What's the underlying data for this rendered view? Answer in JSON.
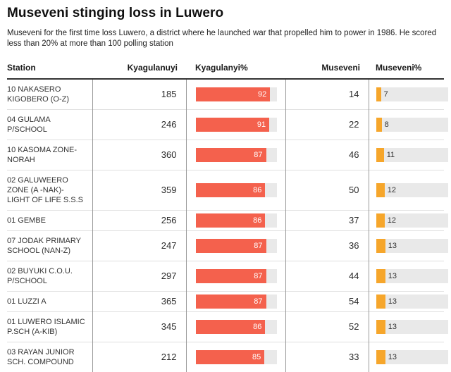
{
  "title": "Museveni stinging loss in Luwero",
  "subtitle": "Museveni for the first time loss Luwero, a district where he launched war that propelled him to power in 1986. He scored less than 20% at more than 100 polling station",
  "colors": {
    "kyagulanyi_bar": "#f4614d",
    "museveni_bar": "#f6a62b",
    "bar_track": "#e9e9e9",
    "header_rule": "#333333",
    "row_rule": "#e0e0e0",
    "column_rule": "#9a9a9a"
  },
  "table": {
    "columns": [
      {
        "key": "station",
        "label": "Station"
      },
      {
        "key": "kyagulanyi_votes",
        "label": "Kyagulanuyi"
      },
      {
        "key": "kyagulanyi_pct",
        "label": "Kyagulanyi%"
      },
      {
        "key": "museveni_votes",
        "label": "Museveni"
      },
      {
        "key": "museveni_pct",
        "label": "Museveni%"
      }
    ],
    "rows": [
      {
        "station": "10 NAKASERO KIGOBERO (O-Z)",
        "kyagulanyi_votes": "185",
        "kyagulanyi_pct": 92,
        "museveni_votes": "14",
        "museveni_pct": 7
      },
      {
        "station": "04 GULAMA P/SCHOOL",
        "kyagulanyi_votes": "246",
        "kyagulanyi_pct": 91,
        "museveni_votes": "22",
        "museveni_pct": 8
      },
      {
        "station": "10 KASOMA ZONE-NORAH",
        "kyagulanyi_votes": "360",
        "kyagulanyi_pct": 87,
        "museveni_votes": "46",
        "museveni_pct": 11
      },
      {
        "station": "02 GALUWEERO ZONE (A -NAK)- LIGHT OF LIFE S.S.S",
        "kyagulanyi_votes": "359",
        "kyagulanyi_pct": 86,
        "museveni_votes": "50",
        "museveni_pct": 12
      },
      {
        "station": "01 GEMBE",
        "kyagulanyi_votes": "256",
        "kyagulanyi_pct": 86,
        "museveni_votes": "37",
        "museveni_pct": 12
      },
      {
        "station": "07 JODAK PRIMARY SCHOOL (NAN-Z)",
        "kyagulanyi_votes": "247",
        "kyagulanyi_pct": 87,
        "museveni_votes": "36",
        "museveni_pct": 13
      },
      {
        "station": "02 BUYUKI C.O.U. P/SCHOOL",
        "kyagulanyi_votes": "297",
        "kyagulanyi_pct": 87,
        "museveni_votes": "44",
        "museveni_pct": 13
      },
      {
        "station": "01 LUZZI A",
        "kyagulanyi_votes": "365",
        "kyagulanyi_pct": 87,
        "museveni_votes": "54",
        "museveni_pct": 13
      },
      {
        "station": "01 LUWERO ISLAMIC P.SCH (A-KIB)",
        "kyagulanyi_votes": "345",
        "kyagulanyi_pct": 86,
        "museveni_votes": "52",
        "museveni_pct": 13
      },
      {
        "station": "03 RAYAN JUNIOR SCH. COMPOUND",
        "kyagulanyi_votes": "212",
        "kyagulanyi_pct": 85,
        "museveni_votes": "33",
        "museveni_pct": 13
      }
    ]
  },
  "chart_data": {
    "type": "table",
    "title": "Museveni stinging loss in Luwero",
    "subtitle": "Museveni for the first time loss Luwero, a district where he launched war that propelled him to power in 1986. He scored less than 20% at more than 100 polling station",
    "columns": [
      "Station",
      "Kyagulanuyi",
      "Kyagulanyi%",
      "Museveni",
      "Museveni%"
    ],
    "categories": [
      "10 NAKASERO KIGOBERO (O-Z)",
      "04 GULAMA P/SCHOOL",
      "10 KASOMA ZONE-NORAH",
      "02 GALUWEERO ZONE (A -NAK)- LIGHT OF LIFE S.S.S",
      "01 GEMBE",
      "07 JODAK PRIMARY SCHOOL (NAN-Z)",
      "02 BUYUKI C.O.U. P/SCHOOL",
      "01 LUZZI A",
      "01 LUWERO ISLAMIC P.SCH (A-KIB)",
      "03 RAYAN JUNIOR SCH. COMPOUND"
    ],
    "series": [
      {
        "name": "Kyagulanuyi",
        "display": "number",
        "values": [
          185,
          246,
          360,
          359,
          256,
          247,
          297,
          365,
          345,
          212
        ]
      },
      {
        "name": "Kyagulanyi%",
        "display": "bar",
        "color": "#f4614d",
        "axis_range": [
          0,
          100
        ],
        "values": [
          92,
          91,
          87,
          86,
          86,
          87,
          87,
          87,
          86,
          85
        ]
      },
      {
        "name": "Museveni",
        "display": "number",
        "values": [
          14,
          22,
          46,
          50,
          37,
          36,
          44,
          54,
          52,
          33
        ]
      },
      {
        "name": "Museveni%",
        "display": "bar",
        "color": "#f6a62b",
        "axis_range": [
          0,
          100
        ],
        "values": [
          7,
          8,
          11,
          12,
          12,
          13,
          13,
          13,
          13,
          13
        ]
      }
    ],
    "legend_position": "none",
    "grid": "off"
  }
}
